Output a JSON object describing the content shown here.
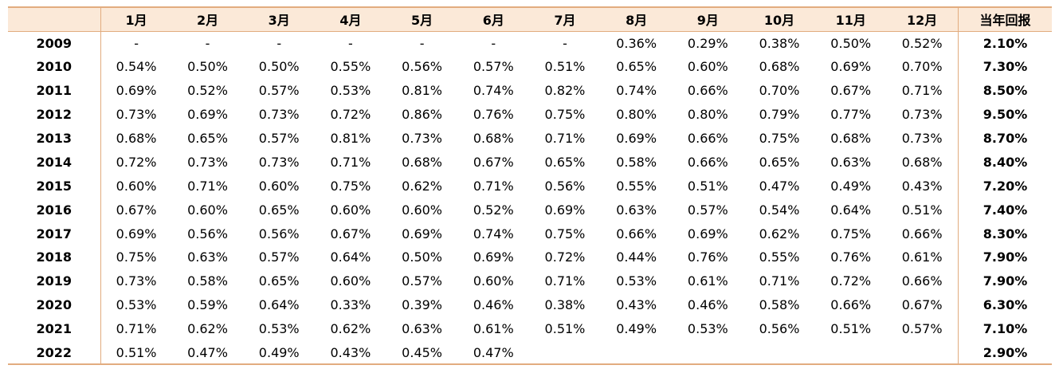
{
  "table": {
    "header": {
      "year_col": "",
      "months": [
        "1月",
        "2月",
        "3月",
        "4月",
        "5月",
        "6月",
        "7月",
        "8月",
        "9月",
        "10月",
        "11月",
        "12月"
      ],
      "total": "当年回报"
    },
    "rows": [
      {
        "year": "2009",
        "m": [
          "-",
          "-",
          "-",
          "-",
          "-",
          "-",
          "-",
          "0.36%",
          "0.29%",
          "0.38%",
          "0.50%",
          "0.52%"
        ],
        "total": "2.10%"
      },
      {
        "year": "2010",
        "m": [
          "0.54%",
          "0.50%",
          "0.50%",
          "0.55%",
          "0.56%",
          "0.57%",
          "0.51%",
          "0.65%",
          "0.60%",
          "0.68%",
          "0.69%",
          "0.70%"
        ],
        "total": "7.30%"
      },
      {
        "year": "2011",
        "m": [
          "0.69%",
          "0.52%",
          "0.57%",
          "0.53%",
          "0.81%",
          "0.74%",
          "0.82%",
          "0.74%",
          "0.66%",
          "0.70%",
          "0.67%",
          "0.71%"
        ],
        "total": "8.50%"
      },
      {
        "year": "2012",
        "m": [
          "0.73%",
          "0.69%",
          "0.73%",
          "0.72%",
          "0.86%",
          "0.76%",
          "0.75%",
          "0.80%",
          "0.80%",
          "0.79%",
          "0.77%",
          "0.73%"
        ],
        "total": "9.50%"
      },
      {
        "year": "2013",
        "m": [
          "0.68%",
          "0.65%",
          "0.57%",
          "0.81%",
          "0.73%",
          "0.68%",
          "0.71%",
          "0.69%",
          "0.66%",
          "0.75%",
          "0.68%",
          "0.73%"
        ],
        "total": "8.70%"
      },
      {
        "year": "2014",
        "m": [
          "0.72%",
          "0.73%",
          "0.73%",
          "0.71%",
          "0.68%",
          "0.67%",
          "0.65%",
          "0.58%",
          "0.66%",
          "0.65%",
          "0.63%",
          "0.68%"
        ],
        "total": "8.40%"
      },
      {
        "year": "2015",
        "m": [
          "0.60%",
          "0.71%",
          "0.60%",
          "0.75%",
          "0.62%",
          "0.71%",
          "0.56%",
          "0.55%",
          "0.51%",
          "0.47%",
          "0.49%",
          "0.43%"
        ],
        "total": "7.20%"
      },
      {
        "year": "2016",
        "m": [
          "0.67%",
          "0.60%",
          "0.65%",
          "0.60%",
          "0.60%",
          "0.52%",
          "0.69%",
          "0.63%",
          "0.57%",
          "0.54%",
          "0.64%",
          "0.51%"
        ],
        "total": "7.40%"
      },
      {
        "year": "2017",
        "m": [
          "0.69%",
          "0.56%",
          "0.56%",
          "0.67%",
          "0.69%",
          "0.74%",
          "0.75%",
          "0.66%",
          "0.69%",
          "0.62%",
          "0.75%",
          "0.66%"
        ],
        "total": "8.30%"
      },
      {
        "year": "2018",
        "m": [
          "0.75%",
          "0.63%",
          "0.57%",
          "0.64%",
          "0.50%",
          "0.69%",
          "0.72%",
          "0.44%",
          "0.76%",
          "0.55%",
          "0.76%",
          "0.61%"
        ],
        "total": "7.90%"
      },
      {
        "year": "2019",
        "m": [
          "0.73%",
          "0.58%",
          "0.65%",
          "0.60%",
          "0.57%",
          "0.60%",
          "0.71%",
          "0.53%",
          "0.61%",
          "0.71%",
          "0.72%",
          "0.66%"
        ],
        "total": "7.90%"
      },
      {
        "year": "2020",
        "m": [
          "0.53%",
          "0.59%",
          "0.64%",
          "0.33%",
          "0.39%",
          "0.46%",
          "0.38%",
          "0.43%",
          "0.46%",
          "0.58%",
          "0.66%",
          "0.67%"
        ],
        "total": "6.30%"
      },
      {
        "year": "2021",
        "m": [
          "0.71%",
          "0.62%",
          "0.53%",
          "0.62%",
          "0.63%",
          "0.61%",
          "0.51%",
          "0.49%",
          "0.53%",
          "0.56%",
          "0.51%",
          "0.57%"
        ],
        "total": "7.10%"
      },
      {
        "year": "2022",
        "m": [
          "0.51%",
          "0.47%",
          "0.49%",
          "0.43%",
          "0.45%",
          "0.47%",
          "",
          "",
          "",
          "",
          "",
          ""
        ],
        "total": "2.90%"
      }
    ]
  },
  "colors": {
    "header_bg": "#fbe9d8",
    "rule": "#e2ac7f"
  }
}
